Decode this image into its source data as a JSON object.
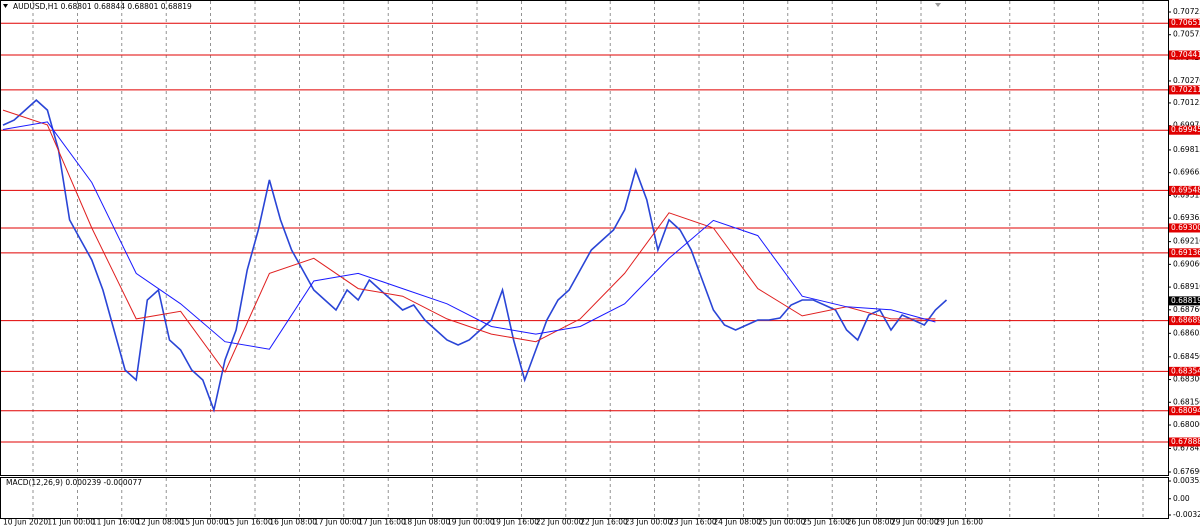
{
  "chart_data": [
    {
      "type": "line",
      "title": "AUDUSD,H1  0.68801 0.68844 0.68801 0.68819",
      "categories": [
        "10 Jun 2020",
        "11 Jun 00:00",
        "11 Jun 16:00",
        "12 Jun 08:00",
        "15 Jun 00:00",
        "15 Jun 16:00",
        "16 Jun 08:00",
        "17 Jun 00:00",
        "17 Jun 16:00",
        "18 Jun 08:00",
        "19 Jun 00:00",
        "19 Jun 16:00",
        "22 Jun 00:00",
        "22 Jun 16:00",
        "23 Jun 00:00",
        "23 Jun 16:00",
        "24 Jun 08:00",
        "25 Jun 00:00",
        "25 Jun 16:00",
        "26 Jun 08:00",
        "29 Jun 00:00",
        "29 Jun 16:00"
      ],
      "ylim": [
        0.6769,
        0.70725
      ],
      "yticks": [
        {
          "value": 0.70725,
          "label": "0.70725"
        },
        {
          "value": 0.70575,
          "label": "0.70575"
        },
        {
          "value": 0.7042,
          "label": "0.70420"
        },
        {
          "value": 0.7027,
          "label": "0.70270"
        },
        {
          "value": 0.70125,
          "label": "0.70125"
        },
        {
          "value": 0.69975,
          "label": "0.69975"
        },
        {
          "value": 0.69815,
          "label": "0.69815"
        },
        {
          "value": 0.69665,
          "label": "0.69665"
        },
        {
          "value": 0.69515,
          "label": "0.69515"
        },
        {
          "value": 0.69365,
          "label": "0.69365"
        },
        {
          "value": 0.6921,
          "label": "0.69210"
        },
        {
          "value": 0.6906,
          "label": "0.69060"
        },
        {
          "value": 0.6891,
          "label": "0.68910"
        },
        {
          "value": 0.6876,
          "label": "0.68760"
        },
        {
          "value": 0.68605,
          "label": "0.68605"
        },
        {
          "value": 0.6845,
          "label": "0.68450"
        },
        {
          "value": 0.683,
          "label": "0.68300"
        },
        {
          "value": 0.6815,
          "label": "0.68150"
        },
        {
          "value": 0.68,
          "label": "0.68000"
        },
        {
          "value": 0.67845,
          "label": "0.67845"
        },
        {
          "value": 0.6769,
          "label": "0.67690"
        }
      ],
      "levels": [
        {
          "value": 0.70651,
          "label": "0.70651"
        },
        {
          "value": 0.70441,
          "label": "0.70441"
        },
        {
          "value": 0.70211,
          "label": "0.70211"
        },
        {
          "value": 0.69945,
          "label": "0.69945"
        },
        {
          "value": 0.69548,
          "label": "0.69548"
        },
        {
          "value": 0.693,
          "label": "0.69300"
        },
        {
          "value": 0.69136,
          "label": "0.69136"
        },
        {
          "value": 0.68689,
          "label": "0.68689"
        },
        {
          "value": 0.68354,
          "label": "0.68354"
        },
        {
          "value": 0.68094,
          "label": "0.68094"
        },
        {
          "value": 0.67888,
          "label": "0.67888"
        }
      ],
      "level_color": "#e00000",
      "last_price": {
        "value": 0.68819,
        "label": "0.68819"
      },
      "series": [
        {
          "color": "#2a45d6",
          "x": [
            0,
            1,
            2,
            3,
            4,
            5,
            6,
            7,
            8,
            9,
            10,
            11,
            12,
            13,
            14,
            15,
            16,
            17,
            18,
            19,
            20,
            21,
            22,
            23,
            24,
            25,
            26,
            27,
            28,
            29,
            30,
            31,
            32,
            33,
            34,
            35,
            36,
            37,
            38,
            39,
            40,
            41,
            42,
            43,
            44,
            45,
            46,
            47,
            48,
            49,
            50,
            51,
            52,
            53,
            54,
            55,
            56,
            57,
            58,
            59,
            60,
            61,
            62,
            63,
            64,
            65,
            66,
            67,
            68,
            69,
            70,
            71,
            72,
            73,
            74,
            75,
            76,
            77,
            78,
            79,
            80,
            81,
            82,
            83,
            84,
            85
          ],
          "values": [
            0.69979,
            0.70012,
            0.70078,
            0.70144,
            0.70078,
            0.69815,
            0.69353,
            0.69221,
            0.69089,
            0.68891,
            0.68627,
            0.68363,
            0.68297,
            0.68825,
            0.68891,
            0.68561,
            0.68495,
            0.68363,
            0.68297,
            0.68099,
            0.68429,
            0.68627,
            0.69023,
            0.69287,
            0.69617,
            0.69353,
            0.69155,
            0.69023,
            0.68891,
            0.68825,
            0.68759,
            0.68891,
            0.68825,
            0.68957,
            0.68891,
            0.68825,
            0.68759,
            0.68792,
            0.68693,
            0.68627,
            0.68561,
            0.68528,
            0.68561,
            0.68627,
            0.68693,
            0.68891,
            0.68561,
            0.68297,
            0.68495,
            0.68693,
            0.68825,
            0.68891,
            0.69023,
            0.69155,
            0.69221,
            0.69287,
            0.69419,
            0.69683,
            0.69485,
            0.69155,
            0.69353,
            0.69287,
            0.69155,
            0.68957,
            0.68759,
            0.6866,
            0.68627,
            0.6866,
            0.68693,
            0.68693,
            0.68706,
            0.68792,
            0.68825,
            0.68825,
            0.68792,
            0.68759,
            0.68627,
            0.68561,
            0.68726,
            0.68759,
            0.68627,
            0.68726,
            0.68693,
            0.6866,
            0.68759,
            0.68825
          ]
        },
        {
          "color": "#e02020",
          "x": [
            0,
            4,
            8,
            12,
            16,
            20,
            24,
            28,
            32,
            36,
            40,
            44,
            48,
            52,
            56,
            60,
            64,
            68,
            72,
            76,
            80,
            84
          ],
          "values": [
            0.70078,
            0.6998,
            0.693,
            0.687,
            0.6875,
            0.6835,
            0.69,
            0.691,
            0.689,
            0.6885,
            0.687,
            0.686,
            0.6855,
            0.687,
            0.69,
            0.694,
            0.693,
            0.689,
            0.6872,
            0.6878,
            0.687,
            0.687
          ]
        },
        {
          "color": "#1a1aff",
          "x": [
            0,
            4,
            8,
            12,
            16,
            20,
            24,
            28,
            32,
            36,
            40,
            44,
            48,
            52,
            56,
            60,
            64,
            68,
            72,
            76,
            80,
            84
          ],
          "values": [
            0.6995,
            0.7,
            0.696,
            0.69,
            0.688,
            0.6855,
            0.685,
            0.6895,
            0.69,
            0.689,
            0.688,
            0.6865,
            0.686,
            0.6865,
            0.688,
            0.691,
            0.6935,
            0.6925,
            0.6885,
            0.6878,
            0.6876,
            0.6868
          ]
        }
      ]
    },
    {
      "type": "macd",
      "title": "MACD(12,26,9) 0.000239 -0.000077",
      "ylim": [
        -0.003235,
        0.003537
      ],
      "yticks": [
        {
          "value": 0.003537,
          "label": "0.003537"
        },
        {
          "value": 0,
          "label": "0.00"
        },
        {
          "value": -0.003235,
          "label": "-0.003235"
        }
      ]
    }
  ]
}
